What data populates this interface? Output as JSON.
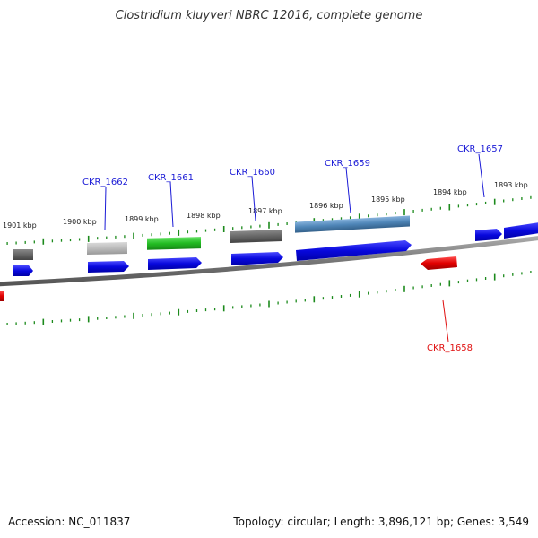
{
  "title": "Clostridium kluyveri NBRC 12016, complete genome",
  "footer": {
    "accession": "Accession: NC_011837",
    "summary": "Topology: circular; Length: 3,896,121 bp; Genes: 3,549"
  },
  "scale_labels": [
    "1901 kbp",
    "1900 kbp",
    "1899 kbp",
    "1898 kbp",
    "1897 kbp",
    "1896 kbp",
    "1895 kbp",
    "1894 kbp",
    "1893 kbp"
  ],
  "gene_labels": [
    {
      "name": "CKR_1662",
      "color": "#1a1ad6"
    },
    {
      "name": "CKR_1661",
      "color": "#1a1ad6"
    },
    {
      "name": "CKR_1660",
      "color": "#1a1ad6"
    },
    {
      "name": "CKR_1659",
      "color": "#1a1ad6"
    },
    {
      "name": "CKR_1657",
      "color": "#1a1ad6"
    },
    {
      "name": "CKR_1658",
      "color": "#e01010"
    }
  ],
  "colors": {
    "cds": "#0a0ae0",
    "cds_reverse": "#e00000",
    "feature_green": "#22bb22",
    "feature_dark_gray": "#666666",
    "feature_light_gray": "#bbbbbb",
    "feature_steelblue": "#4f86b8",
    "backbone": "#888888",
    "tick": "#1c8a1c"
  }
}
